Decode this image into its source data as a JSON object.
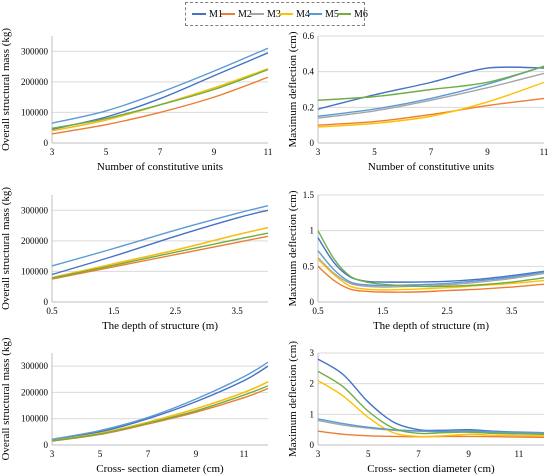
{
  "legend": [
    {
      "label": "M1",
      "color": "#4472c4"
    },
    {
      "label": "M2",
      "color": "#ed7d31"
    },
    {
      "label": "M3",
      "color": "#a5a5a5"
    },
    {
      "label": "M4",
      "color": "#ffc000"
    },
    {
      "label": "M5",
      "color": "#5b9bd5"
    },
    {
      "label": "M6",
      "color": "#70ad47"
    }
  ],
  "chart_data": [
    {
      "type": "line",
      "xlabel": "Number of constitutive units",
      "ylabel": "Overall structural mass (kg)",
      "xlim": [
        3,
        11
      ],
      "ylim": [
        0,
        350000
      ],
      "xticks": [
        3,
        5,
        7,
        9,
        11
      ],
      "xtick_labels": [
        "3",
        "5",
        "7",
        "9",
        "11"
      ],
      "yticks": [
        0,
        100000,
        200000,
        300000
      ],
      "ytick_labels": [
        "0",
        "100000",
        "200000",
        "300000"
      ],
      "grid": "horizontal",
      "x": [
        3,
        5,
        7,
        9,
        11
      ],
      "series": [
        {
          "name": "M1",
          "values": [
            45000,
            85000,
            145000,
            220000,
            295000
          ]
        },
        {
          "name": "M2",
          "values": [
            30000,
            60000,
            100000,
            150000,
            215000
          ]
        },
        {
          "name": "M3",
          "values": [
            40000,
            75000,
            125000,
            180000,
            240000
          ]
        },
        {
          "name": "M4",
          "values": [
            40000,
            75000,
            125000,
            180000,
            243000
          ]
        },
        {
          "name": "M5",
          "values": [
            65000,
            105000,
            165000,
            235000,
            310000
          ]
        },
        {
          "name": "M6",
          "values": [
            48000,
            80000,
            125000,
            175000,
            240000
          ]
        }
      ]
    },
    {
      "type": "line",
      "xlabel": "Number of constitutive units",
      "ylabel": "Maximum deflection (cm)",
      "xlim": [
        3,
        11
      ],
      "ylim": [
        0,
        0.6
      ],
      "xticks": [
        3,
        5,
        7,
        9,
        11
      ],
      "xtick_labels": [
        "3",
        "5",
        "7",
        "9",
        "11"
      ],
      "yticks": [
        0,
        0.2,
        0.4,
        0.6
      ],
      "ytick_labels": [
        "0",
        "0.2",
        "0.4",
        "0.6"
      ],
      "grid": "horizontal",
      "x": [
        3,
        5,
        7,
        9,
        11
      ],
      "series": [
        {
          "name": "M1",
          "values": [
            0.19,
            0.27,
            0.34,
            0.42,
            0.42
          ]
        },
        {
          "name": "M2",
          "values": [
            0.1,
            0.12,
            0.16,
            0.21,
            0.25
          ]
        },
        {
          "name": "M3",
          "values": [
            0.14,
            0.18,
            0.24,
            0.31,
            0.39
          ]
        },
        {
          "name": "M4",
          "values": [
            0.09,
            0.11,
            0.15,
            0.23,
            0.34
          ]
        },
        {
          "name": "M5",
          "values": [
            0.15,
            0.19,
            0.25,
            0.33,
            0.43
          ]
        },
        {
          "name": "M6",
          "values": [
            0.24,
            0.26,
            0.3,
            0.34,
            0.43
          ]
        }
      ]
    },
    {
      "type": "line",
      "xlabel": "The depth of structure (m)",
      "ylabel": "Overall structural mass (kg)",
      "xlim": [
        0.5,
        4.0
      ],
      "ylim": [
        0,
        350000
      ],
      "xticks": [
        0.5,
        1.5,
        2.5,
        3.5
      ],
      "xtick_labels": [
        "0.5",
        "1.5",
        "2.5",
        "3.5"
      ],
      "yticks": [
        0,
        100000,
        200000,
        300000
      ],
      "ytick_labels": [
        "0",
        "100000",
        "200000",
        "300000"
      ],
      "grid": "horizontal",
      "x": [
        0.5,
        1.5,
        2.5,
        3.5,
        4.0
      ],
      "series": [
        {
          "name": "M1",
          "values": [
            90000,
            150000,
            215000,
            275000,
            300000
          ]
        },
        {
          "name": "M2",
          "values": [
            75000,
            115000,
            155000,
            195000,
            215000
          ]
        },
        {
          "name": "M3",
          "values": [
            80000,
            125000,
            170000,
            220000,
            243000
          ]
        },
        {
          "name": "M4",
          "values": [
            80000,
            125000,
            170000,
            220000,
            243000
          ]
        },
        {
          "name": "M5",
          "values": [
            118000,
            175000,
            235000,
            290000,
            315000
          ]
        },
        {
          "name": "M6",
          "values": [
            78000,
            120000,
            163000,
            205000,
            225000
          ]
        }
      ]
    },
    {
      "type": "line",
      "xlabel": "The depth of structure (m)",
      "ylabel": "Maximum deflection (cm)",
      "xlim": [
        0.5,
        4.0
      ],
      "ylim": [
        0,
        1.5
      ],
      "xticks": [
        0.5,
        1.5,
        2.5,
        3.5
      ],
      "xtick_labels": [
        "0.5",
        "1.5",
        "2.5",
        "3.5"
      ],
      "yticks": [
        0,
        0.5,
        1,
        1.5
      ],
      "ytick_labels": [
        "0",
        "0.5",
        "1",
        "1.5"
      ],
      "grid": "horizontal",
      "x": [
        0.5,
        0.75,
        1.0,
        1.25,
        1.5,
        2.0,
        2.5,
        3.0,
        3.5,
        4.0
      ],
      "series": [
        {
          "name": "M1",
          "values": [
            0.9,
            0.55,
            0.35,
            0.29,
            0.28,
            0.28,
            0.29,
            0.32,
            0.37,
            0.43
          ]
        },
        {
          "name": "M2",
          "values": [
            0.5,
            0.3,
            0.18,
            0.15,
            0.14,
            0.14,
            0.16,
            0.18,
            0.21,
            0.25
          ]
        },
        {
          "name": "M3",
          "values": [
            0.62,
            0.4,
            0.26,
            0.22,
            0.21,
            0.22,
            0.24,
            0.28,
            0.33,
            0.4
          ]
        },
        {
          "name": "M4",
          "values": [
            0.6,
            0.38,
            0.22,
            0.18,
            0.17,
            0.18,
            0.2,
            0.23,
            0.26,
            0.3
          ]
        },
        {
          "name": "M5",
          "values": [
            0.72,
            0.45,
            0.28,
            0.24,
            0.23,
            0.24,
            0.26,
            0.3,
            0.35,
            0.42
          ]
        },
        {
          "name": "M6",
          "values": [
            1.0,
            0.6,
            0.36,
            0.28,
            0.25,
            0.22,
            0.22,
            0.24,
            0.28,
            0.34
          ]
        }
      ]
    },
    {
      "type": "line",
      "xlabel": "Cross- section diameter (cm)",
      "ylabel": "Overall structural mass (kg)",
      "xlim": [
        3,
        12
      ],
      "ylim": [
        0,
        350000
      ],
      "xticks": [
        3,
        5,
        7,
        9,
        11
      ],
      "xtick_labels": [
        "3",
        "5",
        "7",
        "9",
        "11"
      ],
      "yticks": [
        0,
        100000,
        200000,
        300000
      ],
      "ytick_labels": [
        "0",
        "100000",
        "200000",
        "300000"
      ],
      "grid": "horizontal",
      "x": [
        3,
        5,
        7,
        9,
        11,
        12
      ],
      "series": [
        {
          "name": "M1",
          "values": [
            20000,
            50000,
            100000,
            165000,
            245000,
            300000
          ]
        },
        {
          "name": "M2",
          "values": [
            15000,
            40000,
            80000,
            125000,
            180000,
            215000
          ]
        },
        {
          "name": "M3",
          "values": [
            17000,
            45000,
            87000,
            138000,
            200000,
            240000
          ]
        },
        {
          "name": "M4",
          "values": [
            17000,
            45000,
            87000,
            138000,
            200000,
            240000
          ]
        },
        {
          "name": "M5",
          "values": [
            22000,
            55000,
            105000,
            175000,
            260000,
            315000
          ]
        },
        {
          "name": "M6",
          "values": [
            16000,
            42000,
            83000,
            130000,
            190000,
            225000
          ]
        }
      ]
    },
    {
      "type": "line",
      "xlabel": "Cross- section diameter (cm)",
      "ylabel": "Maximum deflection (cm)",
      "xlim": [
        3,
        12
      ],
      "ylim": [
        0,
        3
      ],
      "xticks": [
        3,
        5,
        7,
        9,
        11
      ],
      "xtick_labels": [
        "3",
        "5",
        "7",
        "9",
        "11"
      ],
      "yticks": [
        0,
        1,
        2,
        3
      ],
      "ytick_labels": [
        "0",
        "1",
        "2",
        "3"
      ],
      "grid": "horizontal",
      "x": [
        3,
        4,
        5,
        6,
        7,
        8,
        9,
        10,
        11,
        12
      ],
      "series": [
        {
          "name": "M1",
          "values": [
            2.8,
            2.3,
            1.4,
            0.75,
            0.5,
            0.48,
            0.5,
            0.45,
            0.42,
            0.4
          ]
        },
        {
          "name": "M2",
          "values": [
            0.45,
            0.35,
            0.3,
            0.28,
            0.27,
            0.28,
            0.28,
            0.27,
            0.26,
            0.25
          ]
        },
        {
          "name": "M3",
          "values": [
            0.8,
            0.65,
            0.55,
            0.48,
            0.45,
            0.43,
            0.42,
            0.4,
            0.38,
            0.37
          ]
        },
        {
          "name": "M4",
          "values": [
            2.1,
            1.6,
            0.9,
            0.4,
            0.28,
            0.3,
            0.35,
            0.32,
            0.3,
            0.3
          ]
        },
        {
          "name": "M5",
          "values": [
            0.85,
            0.7,
            0.58,
            0.5,
            0.46,
            0.44,
            0.45,
            0.43,
            0.41,
            0.4
          ]
        },
        {
          "name": "M6",
          "values": [
            2.4,
            1.9,
            1.1,
            0.55,
            0.38,
            0.4,
            0.42,
            0.38,
            0.36,
            0.35
          ]
        }
      ]
    }
  ]
}
